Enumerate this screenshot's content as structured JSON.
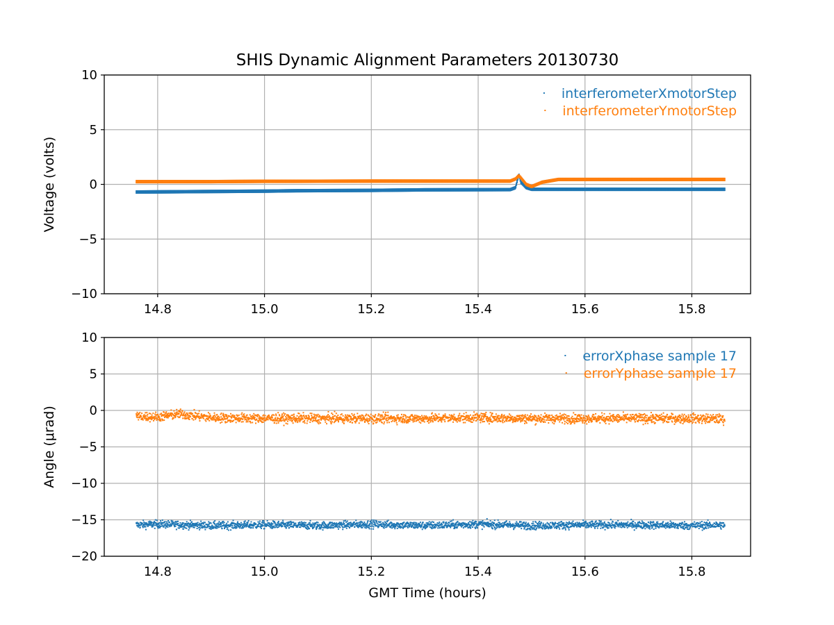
{
  "figure": {
    "title": "SHIS Dynamic Alignment Parameters 20130730"
  },
  "colors": {
    "series_blue": "#1f77b4",
    "series_orange": "#ff7f0e",
    "grid": "#b0b0b0",
    "axes": "#000000"
  },
  "chart_data": [
    {
      "type": "scatter",
      "title": "SHIS Dynamic Alignment Parameters 20130730",
      "xlabel": "",
      "ylabel": "Voltage (volts)",
      "xlim": [
        14.7,
        15.91
      ],
      "ylim": [
        -10,
        10
      ],
      "xticks": [
        14.8,
        15.0,
        15.2,
        15.4,
        15.6,
        15.8
      ],
      "xtick_labels": [
        "14.8",
        "15.0",
        "15.2",
        "15.4",
        "15.6",
        "15.8"
      ],
      "yticks": [
        10,
        5,
        0,
        -5,
        -10
      ],
      "ytick_labels": [
        "10",
        "5",
        "0",
        "−5",
        "−10"
      ],
      "grid": true,
      "legend": "top-right",
      "series": [
        {
          "name": "interferometerXmotorStep",
          "color": "#1f77b4",
          "x": [
            14.76,
            14.9,
            15.0,
            15.06,
            15.2,
            15.3,
            15.46,
            15.47,
            15.476,
            15.48,
            15.49,
            15.5,
            15.6,
            15.7,
            15.862
          ],
          "y": [
            -0.7,
            -0.65,
            -0.62,
            -0.58,
            -0.55,
            -0.5,
            -0.48,
            -0.3,
            0.9,
            0.2,
            -0.3,
            -0.45,
            -0.45,
            -0.45,
            -0.45
          ]
        },
        {
          "name": "interferometerYmotorStep",
          "color": "#ff7f0e",
          "x": [
            14.76,
            14.9,
            15.0,
            15.06,
            15.2,
            15.3,
            15.46,
            15.47,
            15.476,
            15.48,
            15.49,
            15.5,
            15.52,
            15.55,
            15.7,
            15.862
          ],
          "y": [
            0.25,
            0.25,
            0.28,
            0.28,
            0.3,
            0.3,
            0.3,
            0.5,
            0.8,
            0.6,
            0.0,
            -0.2,
            0.2,
            0.45,
            0.45,
            0.45
          ]
        }
      ]
    },
    {
      "type": "scatter",
      "xlabel": "GMT Time (hours)",
      "ylabel": "Angle (μrad)",
      "xlim": [
        14.7,
        15.91
      ],
      "ylim": [
        -20,
        10
      ],
      "xticks": [
        14.8,
        15.0,
        15.2,
        15.4,
        15.6,
        15.8
      ],
      "xtick_labels": [
        "14.8",
        "15.0",
        "15.2",
        "15.4",
        "15.6",
        "15.8"
      ],
      "yticks": [
        10,
        5,
        0,
        -5,
        -10,
        -15,
        -20
      ],
      "ytick_labels": [
        "10",
        "5",
        "0",
        "−5",
        "−10",
        "−15",
        "−20"
      ],
      "grid": true,
      "legend": "top-right",
      "series": [
        {
          "name": "errorXphase sample 17",
          "color": "#1f77b4",
          "x": [
            14.76,
            14.8,
            14.9,
            15.0,
            15.1,
            15.2,
            15.3,
            15.4,
            15.5,
            15.6,
            15.7,
            15.8,
            15.862
          ],
          "y": [
            -15.7,
            -15.6,
            -15.8,
            -15.7,
            -15.8,
            -15.6,
            -15.8,
            -15.6,
            -15.8,
            -15.7,
            -15.7,
            -15.8,
            -15.7
          ],
          "spread": 0.9
        },
        {
          "name": "errorYphase sample 17",
          "color": "#ff7f0e",
          "x": [
            14.76,
            14.8,
            14.84,
            14.9,
            15.0,
            15.1,
            15.2,
            15.3,
            15.4,
            15.5,
            15.6,
            15.7,
            15.8,
            15.862
          ],
          "y": [
            -0.8,
            -0.9,
            -0.5,
            -1.0,
            -1.1,
            -1.1,
            -1.1,
            -1.1,
            -1.0,
            -1.1,
            -1.1,
            -1.1,
            -1.1,
            -1.2
          ],
          "spread": 1.1
        }
      ]
    }
  ]
}
